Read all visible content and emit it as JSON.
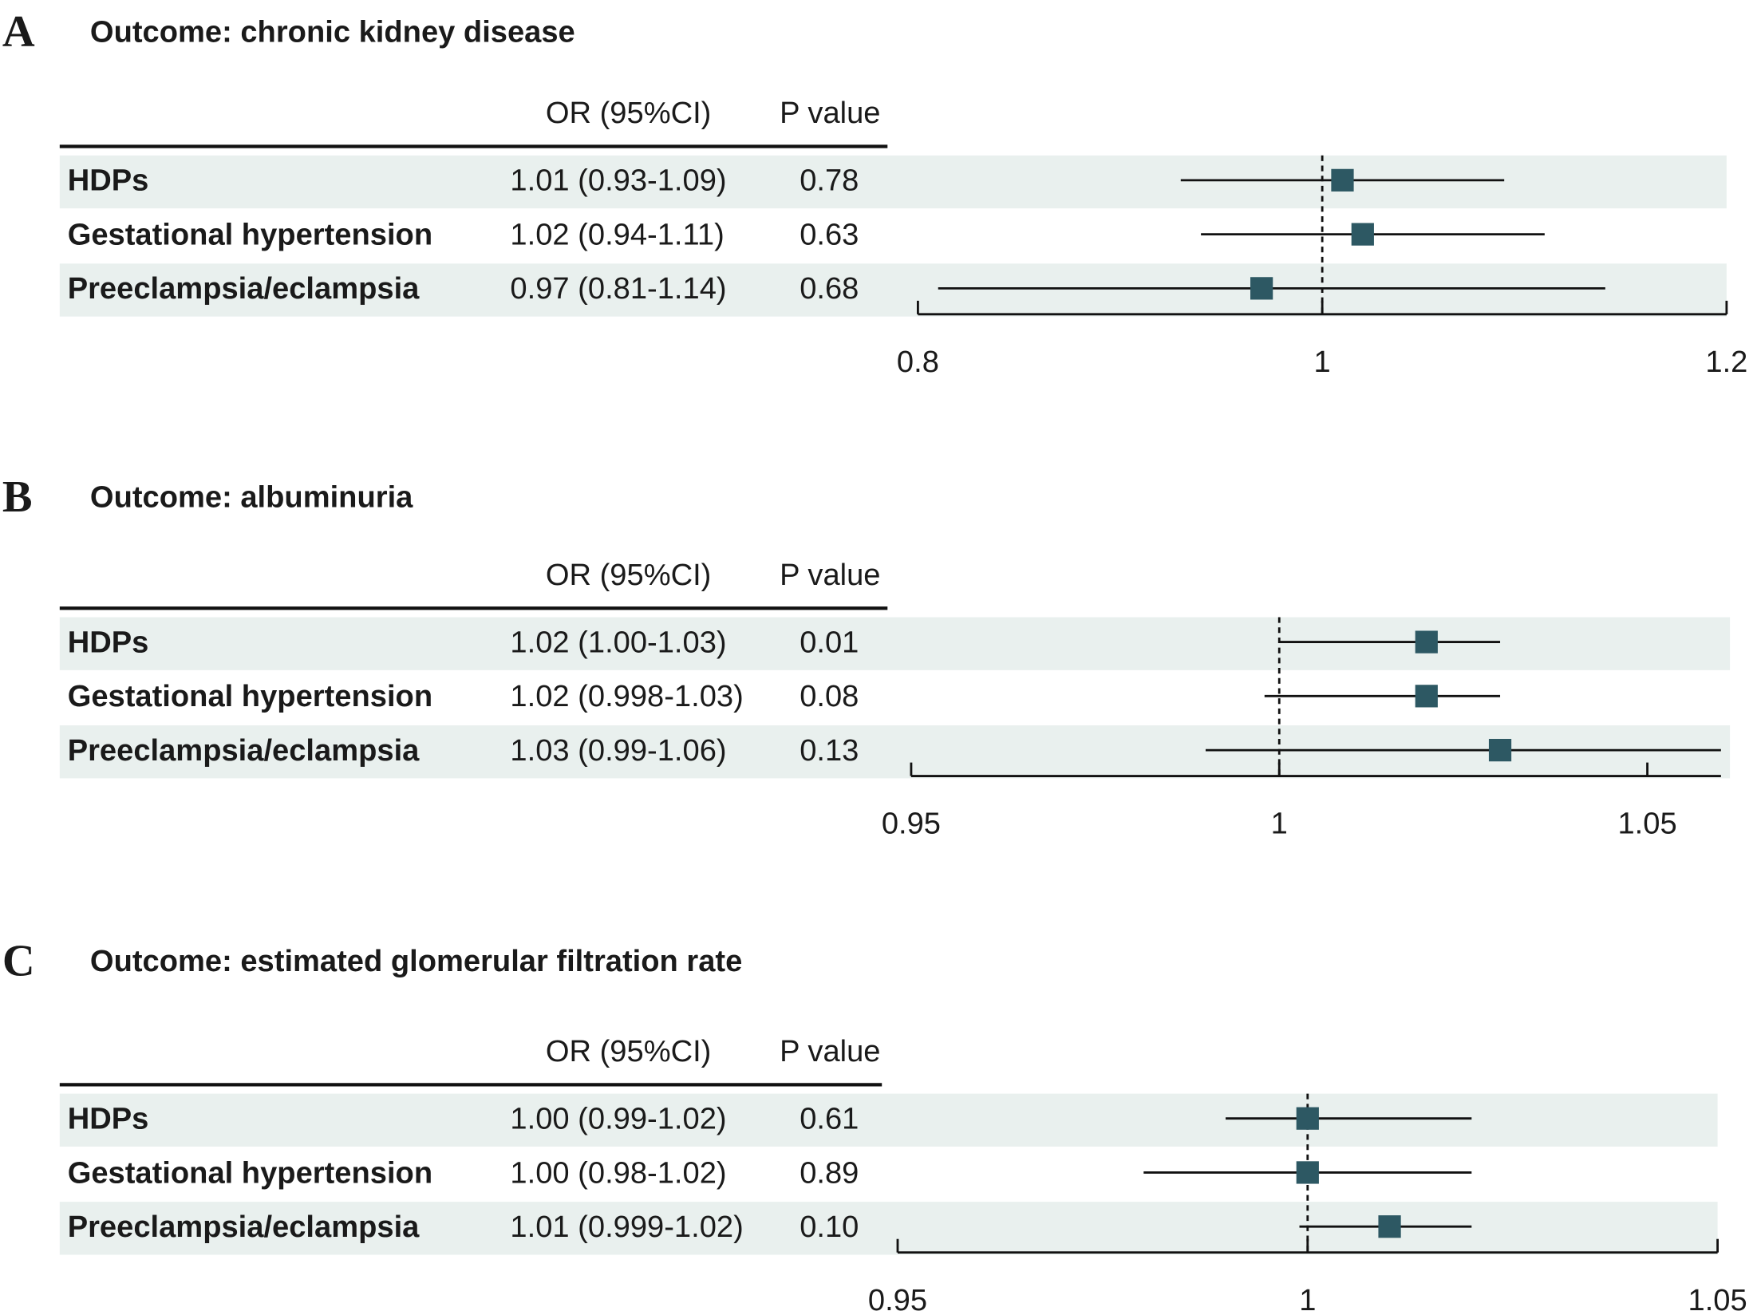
{
  "chart_data": [
    {
      "type": "forest",
      "panel": "A",
      "title": "Outcome:  chronic kidney disease",
      "columns": [
        "OR (95%CI)",
        "P value"
      ],
      "categories": [
        "HDPs",
        "Gestational hypertension",
        "Preeclampsia/eclampsia"
      ],
      "or_ci": [
        "1.01 (0.93-1.09)",
        "1.02 (0.94-1.11)",
        "0.97 (0.81-1.14)"
      ],
      "p_values": [
        "0.78",
        "0.63",
        "0.68"
      ],
      "values": [
        1.01,
        1.02,
        0.97
      ],
      "lower": [
        0.93,
        0.94,
        0.81
      ],
      "upper": [
        1.09,
        1.11,
        1.14
      ],
      "reference": 1,
      "xlim": [
        0.8,
        1.2
      ],
      "xticks": [
        0.8,
        1,
        1.2
      ],
      "color": "#2d5863",
      "band_color": "#e9f0ee"
    },
    {
      "type": "forest",
      "panel": "B",
      "title": "Outcome:  albuminuria",
      "columns": [
        "OR (95%CI)",
        "P value"
      ],
      "categories": [
        "HDPs",
        "Gestational hypertension",
        "Preeclampsia/eclampsia"
      ],
      "or_ci": [
        "1.02 (1.00-1.03)",
        "1.02 (0.998-1.03)",
        "1.03 (0.99-1.06)"
      ],
      "p_values": [
        "0.01",
        "0.08",
        "0.13"
      ],
      "values": [
        1.02,
        1.02,
        1.03
      ],
      "lower": [
        1.0,
        0.998,
        0.99
      ],
      "upper": [
        1.03,
        1.03,
        1.06
      ],
      "reference": 1,
      "xlim": [
        0.95,
        1.06
      ],
      "xticks": [
        0.95,
        1,
        1.05
      ],
      "color": "#2d5863",
      "band_color": "#e9f0ee"
    },
    {
      "type": "forest",
      "panel": "C",
      "title": "Outcome: estimated glomerular filtration rate",
      "columns": [
        "OR (95%CI)",
        "P value"
      ],
      "categories": [
        "HDPs",
        "Gestational hypertension",
        "Preeclampsia/eclampsia"
      ],
      "or_ci": [
        "1.00 (0.99-1.02)",
        "1.00 (0.98-1.02)",
        "1.01 (0.999-1.02)"
      ],
      "p_values": [
        "0.61",
        "0.89",
        "0.10"
      ],
      "values": [
        1.0,
        1.0,
        1.01
      ],
      "lower": [
        0.99,
        0.98,
        0.999
      ],
      "upper": [
        1.02,
        1.02,
        1.02
      ],
      "reference": 1,
      "xlim": [
        0.95,
        1.05
      ],
      "xticks": [
        0.95,
        1,
        1.05
      ],
      "color": "#2d5863",
      "band_color": "#e9f0ee"
    }
  ]
}
